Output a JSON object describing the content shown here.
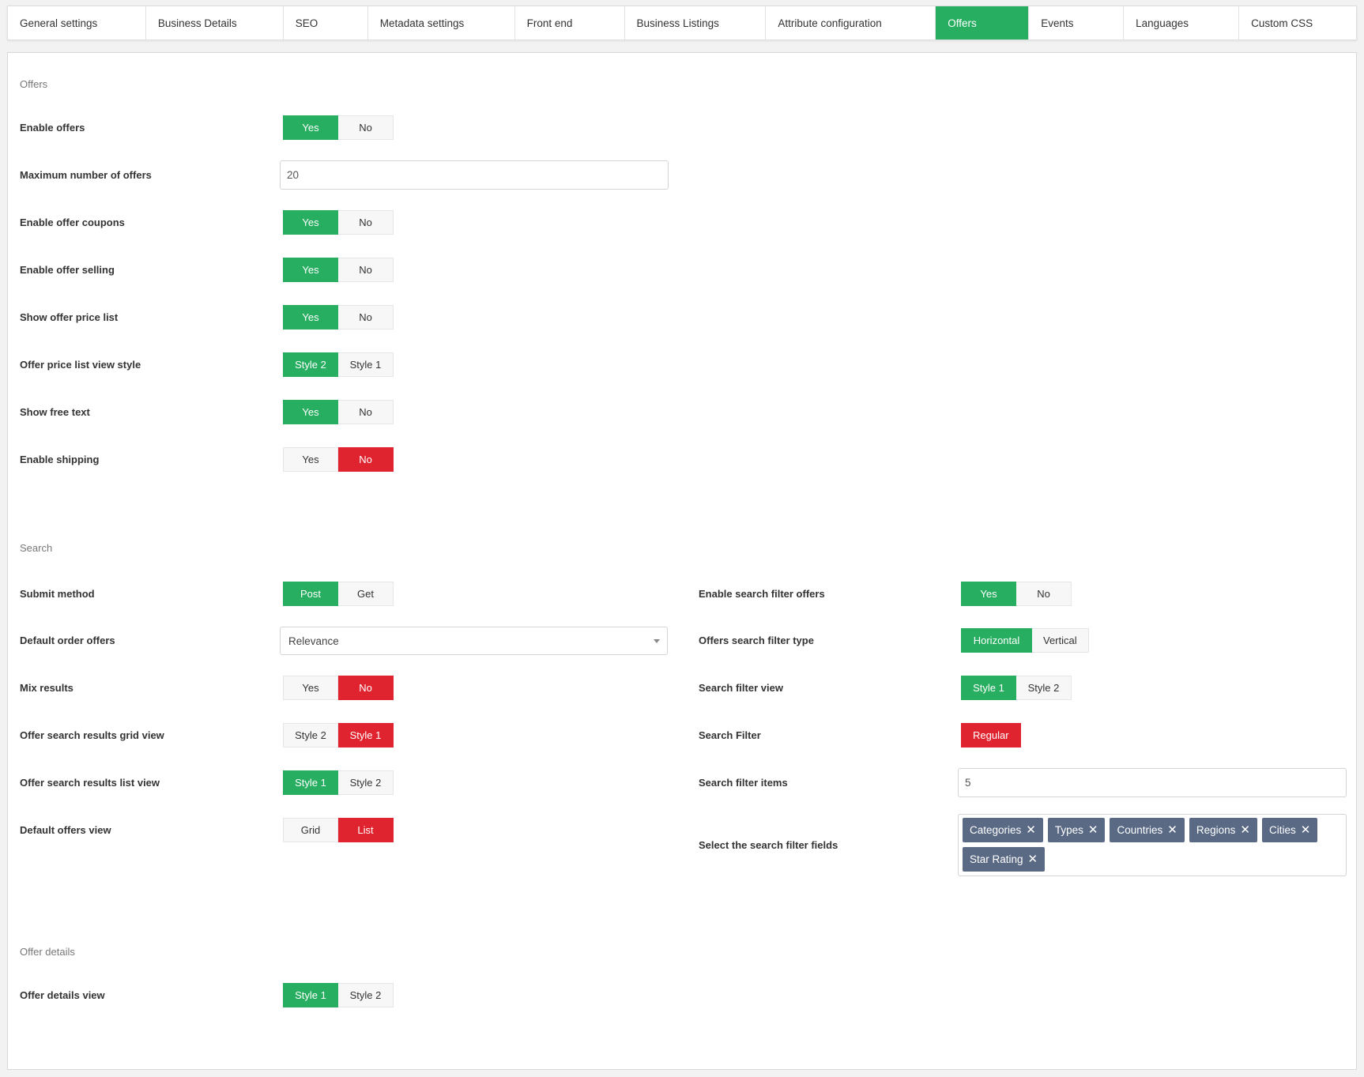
{
  "tabs": [
    {
      "label": "General settings",
      "active": false
    },
    {
      "label": "Business Details",
      "active": false
    },
    {
      "label": "SEO",
      "active": false
    },
    {
      "label": "Metadata settings",
      "active": false
    },
    {
      "label": "Front end",
      "active": false
    },
    {
      "label": "Business Listings",
      "active": false
    },
    {
      "label": "Attribute configuration",
      "active": false
    },
    {
      "label": "Offers",
      "active": true
    },
    {
      "label": "Events",
      "active": false
    },
    {
      "label": "Languages",
      "active": false
    },
    {
      "label": "Custom CSS",
      "active": false
    }
  ],
  "colors": {
    "accent_green": "#27ae60",
    "accent_red": "#e0242f",
    "tag_bg": "#5a6a85"
  },
  "offers_section": {
    "title": "Offers",
    "enable_offers": {
      "label": "Enable offers",
      "options": [
        "Yes",
        "No"
      ],
      "selected": "Yes"
    },
    "max_offers": {
      "label": "Maximum number of offers",
      "value": "20"
    },
    "enable_coupons": {
      "label": "Enable offer coupons",
      "options": [
        "Yes",
        "No"
      ],
      "selected": "Yes"
    },
    "enable_selling": {
      "label": "Enable offer selling",
      "options": [
        "Yes",
        "No"
      ],
      "selected": "Yes"
    },
    "show_price_list": {
      "label": "Show offer price list",
      "options": [
        "Yes",
        "No"
      ],
      "selected": "Yes"
    },
    "price_list_style": {
      "label": "Offer price list view style",
      "options": [
        "Style 2",
        "Style 1"
      ],
      "selected": "Style 2"
    },
    "show_free_text": {
      "label": "Show free text",
      "options": [
        "Yes",
        "No"
      ],
      "selected": "Yes"
    },
    "enable_shipping": {
      "label": "Enable shipping",
      "options": [
        "Yes",
        "No"
      ],
      "selected": "No"
    }
  },
  "search_section": {
    "title": "Search",
    "submit_method": {
      "label": "Submit method",
      "options": [
        "Post",
        "Get"
      ],
      "selected": "Post"
    },
    "default_order": {
      "label": "Default order offers",
      "value": "Relevance"
    },
    "mix_results": {
      "label": "Mix results",
      "options": [
        "Yes",
        "No"
      ],
      "selected": "No"
    },
    "grid_view": {
      "label": "Offer search results grid view",
      "options": [
        "Style 2",
        "Style 1"
      ],
      "selected": "Style 1"
    },
    "list_view": {
      "label": "Offer search results list view",
      "options": [
        "Style 1",
        "Style 2"
      ],
      "selected": "Style 1"
    },
    "default_view": {
      "label": "Default offers view",
      "options": [
        "Grid",
        "List"
      ],
      "selected": "List"
    },
    "enable_filter": {
      "label": "Enable search filter offers",
      "options": [
        "Yes",
        "No"
      ],
      "selected": "Yes"
    },
    "filter_type": {
      "label": "Offers search filter type",
      "options": [
        "Horizontal",
        "Vertical"
      ],
      "selected": "Horizontal"
    },
    "filter_view": {
      "label": "Search filter view",
      "options": [
        "Style 1",
        "Style 2"
      ],
      "selected": "Style 1"
    },
    "search_filter": {
      "label": "Search Filter",
      "options": [
        "Regular"
      ],
      "selected": "Regular"
    },
    "filter_items": {
      "label": "Search filter items",
      "value": "5"
    },
    "filter_fields": {
      "label": "Select the search filter fields",
      "tags": [
        "Categories",
        "Types",
        "Countries",
        "Regions",
        "Cities",
        "Star Rating"
      ]
    }
  },
  "details_section": {
    "title": "Offer details",
    "details_view": {
      "label": "Offer details view",
      "options": [
        "Style 1",
        "Style 2"
      ],
      "selected": "Style 1"
    }
  }
}
